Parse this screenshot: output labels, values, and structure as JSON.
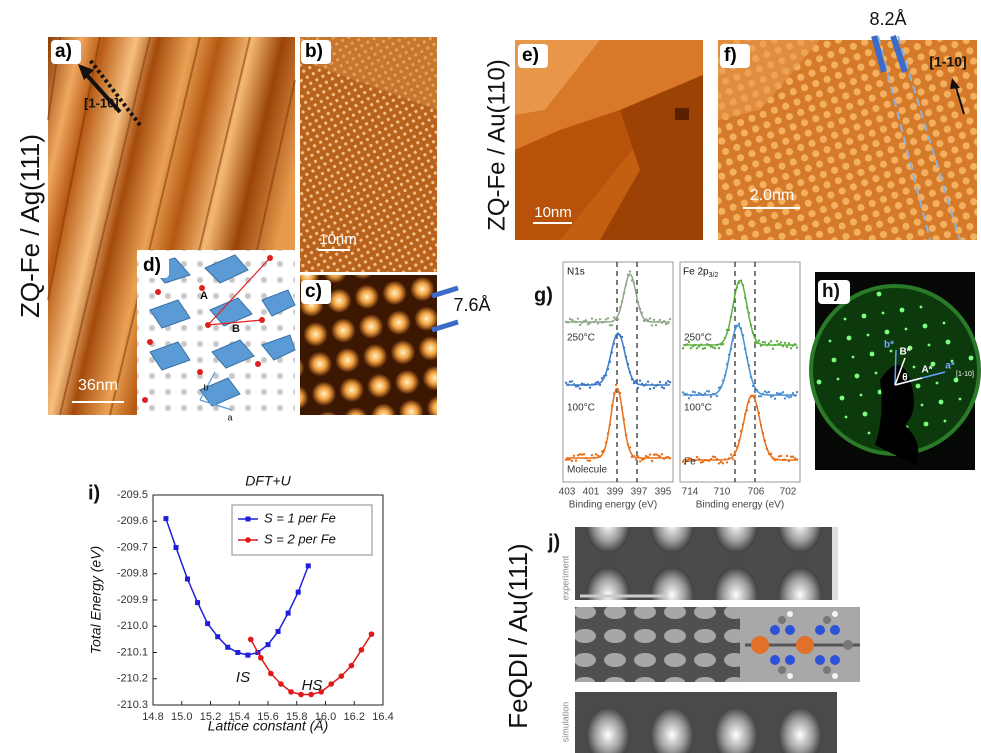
{
  "side_labels": [
    "ZQ-Fe / Ag(111)",
    "ZQ-Fe / Au(110)",
    "FeQDI / Au(111)"
  ],
  "panels": {
    "a": {
      "label": "a)",
      "direction": "[1-10]",
      "scale": "36nm"
    },
    "b": {
      "label": "b)",
      "scale": "10nm"
    },
    "c": {
      "label": "c)",
      "spacing": "7.6Å"
    },
    "d": {
      "label": "d)",
      "labels": [
        "A",
        "B",
        "b",
        "a"
      ]
    },
    "e": {
      "label": "e)",
      "scale": "10nm"
    },
    "f": {
      "label": "f)",
      "spacing": "8.2Å",
      "direction": "[1-10]",
      "scale": "2.0nm"
    },
    "g": {
      "label": "g)",
      "left": {
        "title": "N1s",
        "traces": [
          "250°C",
          "100°C",
          "Molecule"
        ],
        "ticks": [
          "403",
          "401",
          "399",
          "397",
          "395"
        ],
        "axis": "Binding energy (eV)"
      },
      "right": {
        "title": "Fe 2p",
        "title_sub": "3/2",
        "traces": [
          "250°C",
          "100°C",
          "Fe"
        ],
        "ticks": [
          "714",
          "710",
          "706",
          "702"
        ],
        "axis": "Binding energy (eV)"
      }
    },
    "h": {
      "label": "h)",
      "labels": [
        "b*",
        "B*",
        "θ",
        "A*",
        "a*",
        "[1-10]"
      ]
    },
    "j": {
      "label": "j)",
      "rows": [
        "experiment",
        "simulation"
      ]
    }
  },
  "chart_data": {
    "type": "line",
    "panel_label": "i)",
    "title": "DFT+U",
    "x_label": "Lattice constant (Å)",
    "y_label": "Total Energy (eV)",
    "series": [
      {
        "name": "S = 1 per Fe",
        "color": "#1f1fdc",
        "marker": "square",
        "x": [
          14.89,
          14.96,
          15.04,
          15.11,
          15.18,
          15.25,
          15.32,
          15.39,
          15.46,
          15.53,
          15.6,
          15.67,
          15.74,
          15.81,
          15.88
        ],
        "values": [
          -209.59,
          -209.7,
          -209.82,
          -209.91,
          -209.99,
          -210.04,
          -210.08,
          -210.1,
          -210.11,
          -210.1,
          -210.07,
          -210.02,
          -209.95,
          -209.87,
          -209.77
        ]
      },
      {
        "name": "S = 2 per Fe",
        "color": "#e01818",
        "marker": "circle",
        "x": [
          15.48,
          15.55,
          15.62,
          15.69,
          15.76,
          15.83,
          15.9,
          15.97,
          16.04,
          16.11,
          16.18,
          16.25,
          16.32
        ],
        "values": [
          -210.05,
          -210.12,
          -210.18,
          -210.22,
          -210.25,
          -210.26,
          -210.26,
          -210.25,
          -210.22,
          -210.19,
          -210.15,
          -210.09,
          -210.03
        ]
      }
    ],
    "annotations": [
      "IS",
      "HS"
    ],
    "xlim": [
      14.8,
      16.4
    ],
    "xticks": [
      14.8,
      {
        "value": 15.0,
        "label": "15.0"
      },
      15.2,
      15.4,
      15.6,
      15.8,
      {
        "value": 16.0,
        "label": "16.0"
      },
      16.2,
      16.4
    ],
    "ylim": [
      -210.3,
      -209.5
    ],
    "yticks": [
      -209.5,
      -209.6,
      -209.7,
      -209.8,
      -209.9,
      {
        "value": -210.0,
        "label": "-210.0"
      },
      -210.1,
      -210.2,
      -210.3
    ],
    "legend": "upper right"
  }
}
